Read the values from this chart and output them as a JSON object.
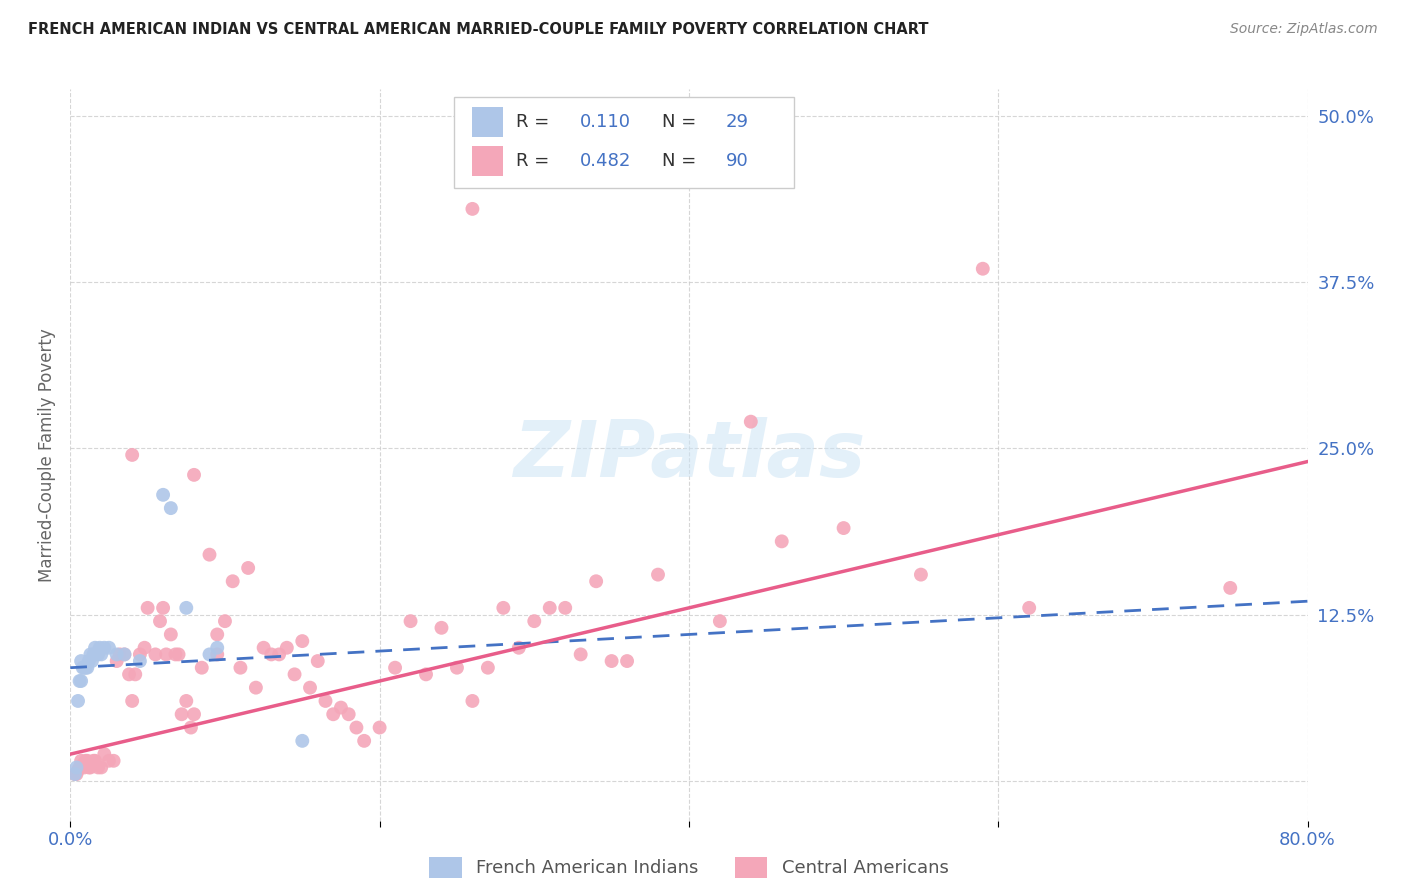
{
  "title": "FRENCH AMERICAN INDIAN VS CENTRAL AMERICAN MARRIED-COUPLE FAMILY POVERTY CORRELATION CHART",
  "source": "Source: ZipAtlas.com",
  "ylabel": "Married-Couple Family Poverty",
  "xlim": [
    0.0,
    0.8
  ],
  "ylim": [
    -0.03,
    0.52
  ],
  "ytick_positions": [
    0.0,
    0.125,
    0.25,
    0.375,
    0.5
  ],
  "ytick_labels_right": [
    "",
    "12.5%",
    "25.0%",
    "37.5%",
    "50.0%"
  ],
  "color_blue": "#aec6e8",
  "color_pink": "#f4a7b9",
  "color_blue_line": "#4472c4",
  "color_pink_line": "#e85d8a",
  "color_blue_text": "#4472c4",
  "legend_label1": "French American Indians",
  "legend_label2": "Central Americans",
  "blue_points_x": [
    0.003,
    0.004,
    0.005,
    0.006,
    0.007,
    0.007,
    0.008,
    0.009,
    0.01,
    0.011,
    0.012,
    0.013,
    0.014,
    0.015,
    0.016,
    0.018,
    0.019,
    0.02,
    0.022,
    0.025,
    0.03,
    0.035,
    0.045,
    0.06,
    0.065,
    0.075,
    0.09,
    0.095,
    0.15
  ],
  "blue_points_y": [
    0.005,
    0.01,
    0.06,
    0.075,
    0.075,
    0.09,
    0.085,
    0.085,
    0.085,
    0.085,
    0.09,
    0.095,
    0.09,
    0.095,
    0.1,
    0.095,
    0.1,
    0.095,
    0.1,
    0.1,
    0.095,
    0.095,
    0.09,
    0.215,
    0.205,
    0.13,
    0.095,
    0.1,
    0.03
  ],
  "pink_points_x": [
    0.003,
    0.004,
    0.005,
    0.006,
    0.007,
    0.008,
    0.009,
    0.01,
    0.011,
    0.012,
    0.013,
    0.015,
    0.016,
    0.018,
    0.02,
    0.022,
    0.025,
    0.028,
    0.03,
    0.032,
    0.035,
    0.038,
    0.04,
    0.042,
    0.045,
    0.048,
    0.05,
    0.055,
    0.058,
    0.06,
    0.062,
    0.065,
    0.068,
    0.07,
    0.072,
    0.075,
    0.078,
    0.08,
    0.085,
    0.09,
    0.095,
    0.1,
    0.105,
    0.11,
    0.115,
    0.12,
    0.125,
    0.13,
    0.135,
    0.14,
    0.145,
    0.15,
    0.155,
    0.16,
    0.165,
    0.17,
    0.175,
    0.18,
    0.185,
    0.19,
    0.2,
    0.21,
    0.22,
    0.23,
    0.24,
    0.25,
    0.26,
    0.27,
    0.28,
    0.29,
    0.3,
    0.31,
    0.32,
    0.33,
    0.34,
    0.35,
    0.36,
    0.38,
    0.42,
    0.44,
    0.46,
    0.5,
    0.55,
    0.26,
    0.59,
    0.62,
    0.75,
    0.04,
    0.08,
    0.095
  ],
  "pink_points_y": [
    0.005,
    0.005,
    0.008,
    0.01,
    0.015,
    0.012,
    0.01,
    0.015,
    0.015,
    0.01,
    0.01,
    0.015,
    0.015,
    0.01,
    0.01,
    0.02,
    0.015,
    0.015,
    0.09,
    0.095,
    0.095,
    0.08,
    0.06,
    0.08,
    0.095,
    0.1,
    0.13,
    0.095,
    0.12,
    0.13,
    0.095,
    0.11,
    0.095,
    0.095,
    0.05,
    0.06,
    0.04,
    0.05,
    0.085,
    0.17,
    0.095,
    0.12,
    0.15,
    0.085,
    0.16,
    0.07,
    0.1,
    0.095,
    0.095,
    0.1,
    0.08,
    0.105,
    0.07,
    0.09,
    0.06,
    0.05,
    0.055,
    0.05,
    0.04,
    0.03,
    0.04,
    0.085,
    0.12,
    0.08,
    0.115,
    0.085,
    0.06,
    0.085,
    0.13,
    0.1,
    0.12,
    0.13,
    0.13,
    0.095,
    0.15,
    0.09,
    0.09,
    0.155,
    0.12,
    0.27,
    0.18,
    0.19,
    0.155,
    0.43,
    0.385,
    0.13,
    0.145,
    0.245,
    0.23,
    0.11
  ],
  "blue_line_x0": 0.0,
  "blue_line_x1": 0.8,
  "blue_line_y0": 0.085,
  "blue_line_y1": 0.135,
  "pink_line_x0": 0.0,
  "pink_line_x1": 0.8,
  "pink_line_y0": 0.02,
  "pink_line_y1": 0.24
}
